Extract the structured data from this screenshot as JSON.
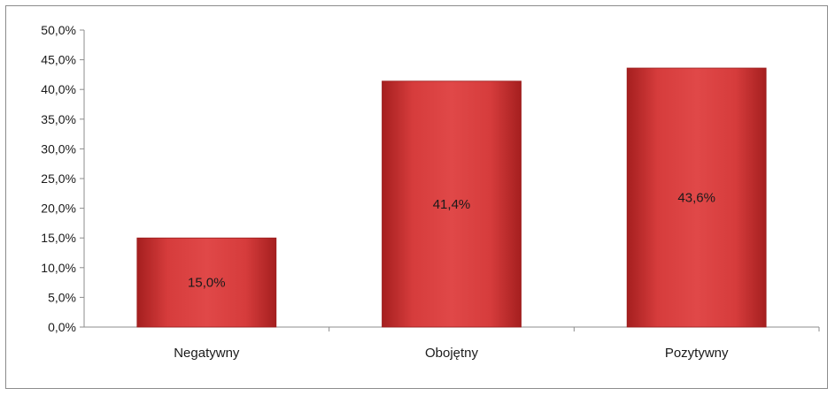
{
  "chart_data": {
    "type": "bar",
    "categories": [
      "Negatywny",
      "Obojętny",
      "Pozytywny"
    ],
    "values": [
      15.0,
      41.4,
      43.6
    ],
    "data_labels": [
      "15,0%",
      "41,4%",
      "43,6%"
    ],
    "ylim": [
      0,
      50
    ],
    "yticks": [
      0,
      5,
      10,
      15,
      20,
      25,
      30,
      35,
      40,
      45,
      50
    ],
    "ytick_labels": [
      "0,0%",
      "5,0%",
      "10,0%",
      "15,0%",
      "20,0%",
      "25,0%",
      "30,0%",
      "35,0%",
      "40,0%",
      "45,0%",
      "50,0%"
    ],
    "grid": false,
    "legend": "none",
    "bar_color": "#d43a3a"
  }
}
